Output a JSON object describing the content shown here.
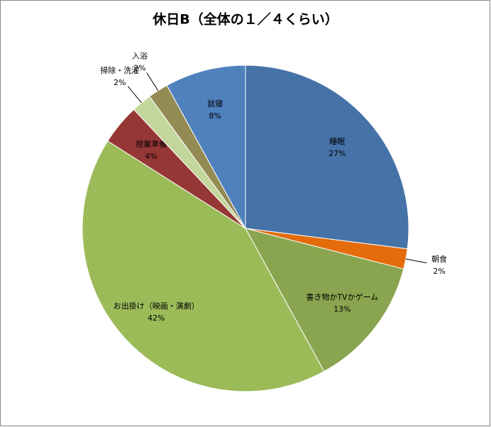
{
  "chart_data": {
    "type": "pie",
    "title": "休日B（全体の１／４くらい）",
    "categories": [
      "睡眠",
      "朝食",
      "書き物かTVかゲーム",
      "お出掛け（映画・演劇）",
      "授業準備",
      "掃除・洗濯",
      "入浴",
      "就寝"
    ],
    "values": [
      27,
      2,
      13,
      42,
      4,
      2,
      2,
      8
    ],
    "value_labels": [
      "27%",
      "2%",
      "13%",
      "42%",
      "4%",
      "2%",
      "2%",
      "8%"
    ],
    "colors": [
      "#4572a7",
      "#e46c0a",
      "#8aa54f",
      "#9bbb59",
      "#953735",
      "#c3d69b",
      "#948a54",
      "#4f81bd"
    ]
  }
}
